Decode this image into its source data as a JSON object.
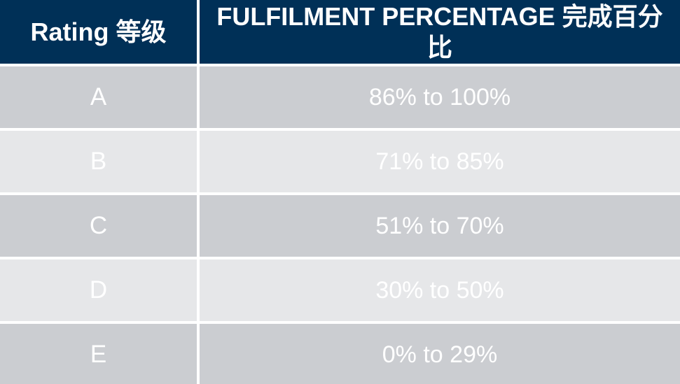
{
  "table": {
    "columns": [
      {
        "key": "rating",
        "label": "Rating 等级"
      },
      {
        "key": "percentage",
        "label": "FULFILMENT PERCENTAGE 完成百分比"
      }
    ],
    "rows": [
      {
        "rating": "A",
        "percentage": "86% to 100%"
      },
      {
        "rating": "B",
        "percentage": "71% to 85%"
      },
      {
        "rating": "C",
        "percentage": "51% to 70%"
      },
      {
        "rating": "D",
        "percentage": "30% to 50%"
      },
      {
        "rating": "E",
        "percentage": "0% to 29%"
      }
    ],
    "colors": {
      "header_background": "#003057",
      "row_dark": "#cbcdd1",
      "row_light": "#e6e7e9",
      "text": "#ffffff",
      "gutter": "#ffffff"
    }
  }
}
